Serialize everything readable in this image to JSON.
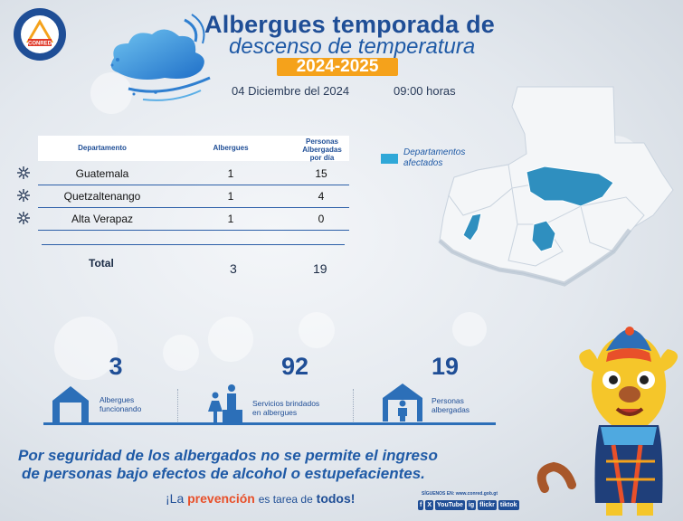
{
  "header": {
    "title_line1": "Albergues temporada de",
    "title_line2": "descenso de temperatura",
    "season": "2024-2025",
    "date": "04 Diciembre del 2024",
    "time": "09:00 horas",
    "logo_text": "CONRED"
  },
  "table": {
    "headers": [
      "Departamento",
      "Albergues",
      "Personas Albergadas por día"
    ],
    "rows": [
      {
        "departamento": "Guatemala",
        "albergues": "1",
        "personas": "15"
      },
      {
        "departamento": "Quetzaltenango",
        "albergues": "1",
        "personas": "4"
      },
      {
        "departamento": "Alta Verapaz",
        "albergues": "1",
        "personas": "0"
      }
    ],
    "total_label": "Total",
    "total_albergues": "3",
    "total_personas": "19"
  },
  "map": {
    "legend": "Departamentos afectados",
    "highlight_color": "#2fa8d8",
    "base_color": "#f4f6f8"
  },
  "stats": [
    {
      "value": "3",
      "label_1": "Albergues",
      "label_2": "funcionando",
      "icon": "house-icon"
    },
    {
      "value": "92",
      "label_1": "Servicios brindados",
      "label_2": "en albergues",
      "icon": "service-icon"
    },
    {
      "value": "19",
      "label_1": "Personas",
      "label_2": "albergadas",
      "icon": "person-house-icon"
    }
  ],
  "message": {
    "line1": "Por seguridad de los albergados no se permite el ingreso",
    "line2": "de personas bajo efectos de alcohol o estupefacientes."
  },
  "footer": {
    "slogan_a": "¡La",
    "slogan_b": "prevención",
    "slogan_c": "es tarea de",
    "slogan_d": "todos!",
    "follow": "SÍGUENOS EN: www.conred.gob.gt",
    "social": [
      "f",
      "X",
      "YouTube",
      "ig",
      "flickr",
      "tiktok"
    ]
  },
  "colors": {
    "primary": "#1f4e96",
    "accent": "#f5a21b",
    "highlight": "#2fa8d8"
  }
}
